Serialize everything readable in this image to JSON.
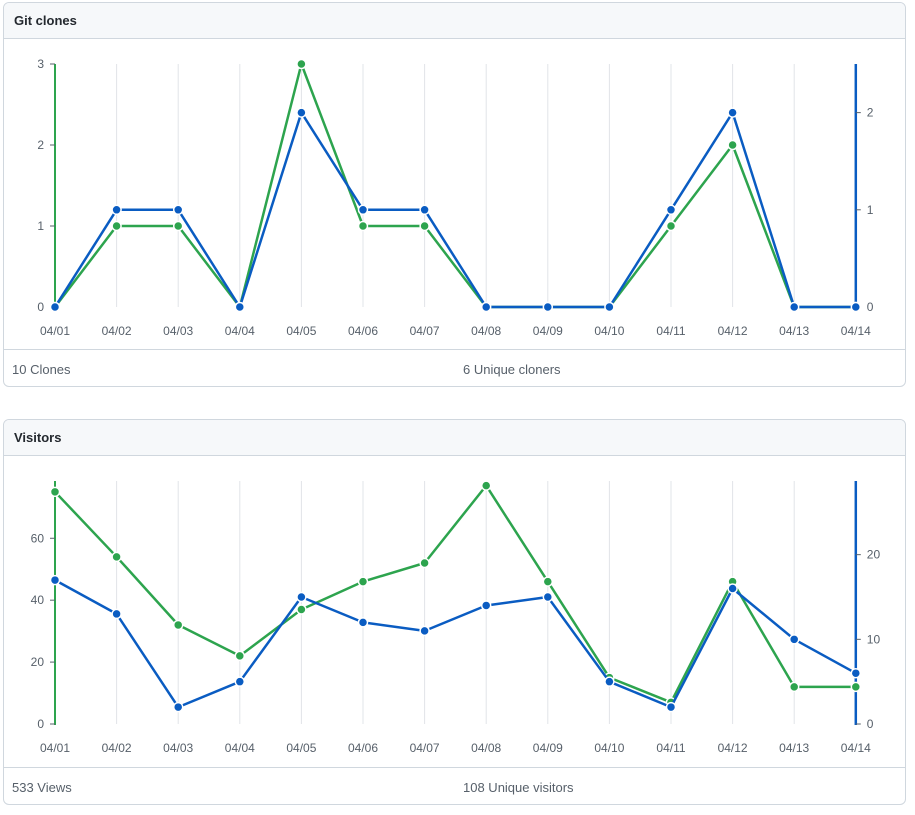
{
  "clones": {
    "title": "Git clones",
    "total_label": "10 Clones",
    "unique_label": "6 Unique cloners"
  },
  "visitors": {
    "title": "Visitors",
    "total_label": "533 Views",
    "unique_label": "108 Unique visitors"
  },
  "colors": {
    "total": "#2da44e",
    "unique": "#0a5cc2",
    "grid": "#e1e4e8"
  },
  "chart_data": [
    {
      "type": "line",
      "categories": [
        "04/01",
        "04/02",
        "04/03",
        "04/04",
        "04/05",
        "04/06",
        "04/07",
        "04/08",
        "04/09",
        "04/10",
        "04/11",
        "04/12",
        "04/13",
        "04/14"
      ],
      "series": [
        {
          "name": "Clones",
          "axis": "left",
          "color": "#2da44e",
          "values": [
            0,
            1,
            1,
            0,
            3,
            1,
            1,
            0,
            0,
            0,
            1,
            2,
            0,
            0
          ]
        },
        {
          "name": "Unique cloners",
          "axis": "right",
          "color": "#0a5cc2",
          "values": [
            0,
            1,
            1,
            0,
            2,
            1,
            1,
            0,
            0,
            0,
            1,
            2,
            0,
            0
          ]
        }
      ],
      "y_left": {
        "ticks": [
          0,
          1,
          2,
          3
        ],
        "range": [
          0,
          3
        ]
      },
      "y_right": {
        "ticks": [
          0,
          1,
          2
        ],
        "range": [
          0,
          2.5
        ]
      },
      "grid": "vertical"
    },
    {
      "type": "line",
      "categories": [
        "04/01",
        "04/02",
        "04/03",
        "04/04",
        "04/05",
        "04/06",
        "04/07",
        "04/08",
        "04/09",
        "04/10",
        "04/11",
        "04/12",
        "04/13",
        "04/14"
      ],
      "series": [
        {
          "name": "Views",
          "axis": "left",
          "color": "#2da44e",
          "values": [
            75,
            54,
            32,
            22,
            37,
            46,
            52,
            77,
            46,
            15,
            7,
            46,
            12,
            12
          ]
        },
        {
          "name": "Unique visitors",
          "axis": "right",
          "color": "#0a5cc2",
          "values": [
            17,
            13,
            2,
            5,
            15,
            12,
            11,
            14,
            15,
            5,
            2,
            16,
            10,
            6
          ]
        }
      ],
      "y_left": {
        "ticks": [
          0,
          20,
          40,
          60
        ],
        "range": [
          0,
          78.5
        ]
      },
      "y_right": {
        "ticks": [
          0,
          10,
          20
        ],
        "range": [
          0,
          28.7
        ]
      },
      "grid": "vertical"
    }
  ]
}
